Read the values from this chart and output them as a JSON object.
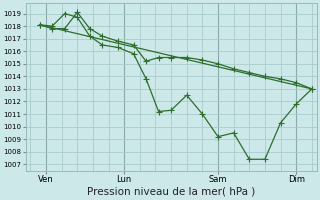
{
  "xlabel": "Pression niveau de la mer( hPa )",
  "background_color": "#cce8e8",
  "grid_color": "#aacccc",
  "grid_color2": "#bbbbbb",
  "line_color": "#2d6e2d",
  "ylim": [
    1006.5,
    1019.8
  ],
  "xlim": [
    -0.15,
    9.15
  ],
  "yticks": [
    1007,
    1008,
    1009,
    1010,
    1011,
    1012,
    1013,
    1014,
    1015,
    1016,
    1017,
    1018,
    1019
  ],
  "xtick_labels": [
    "Ven",
    "Lun",
    "Sam",
    "Dim"
  ],
  "xtick_positions": [
    0.5,
    3.0,
    6.0,
    8.5
  ],
  "vline_positions": [
    0.5,
    3.0,
    6.0,
    8.5
  ],
  "line1_x": [
    0.3,
    0.7,
    1.1,
    1.5,
    1.9,
    2.3,
    2.8,
    3.3,
    3.7,
    4.1,
    4.5,
    5.0,
    5.5,
    6.0,
    6.5,
    7.0,
    7.5,
    8.0,
    8.5,
    9.0
  ],
  "line1_y": [
    1018.1,
    1018.0,
    1019.0,
    1018.7,
    1017.2,
    1016.5,
    1016.3,
    1015.8,
    1013.8,
    1011.2,
    1011.3,
    1012.5,
    1011.0,
    1009.2,
    1009.5,
    1007.4,
    1007.4,
    1010.3,
    1011.8,
    1013.0
  ],
  "line2_x": [
    0.3,
    0.7,
    1.1,
    1.5,
    1.9,
    2.3,
    2.8,
    3.3,
    3.7,
    4.1,
    4.5,
    5.0,
    5.5,
    6.0,
    6.5,
    7.0,
    7.5,
    8.0,
    8.5,
    9.0
  ],
  "line2_y": [
    1018.1,
    1017.8,
    1017.8,
    1019.1,
    1017.8,
    1017.2,
    1016.8,
    1016.5,
    1015.2,
    1015.5,
    1015.5,
    1015.5,
    1015.3,
    1015.0,
    1014.6,
    1014.3,
    1014.0,
    1013.8,
    1013.5,
    1013.0
  ],
  "line3_x": [
    0.3,
    9.0
  ],
  "line3_y": [
    1018.1,
    1013.0
  ],
  "ylabel_fontsize": 5.5,
  "xlabel_fontsize": 7.5
}
